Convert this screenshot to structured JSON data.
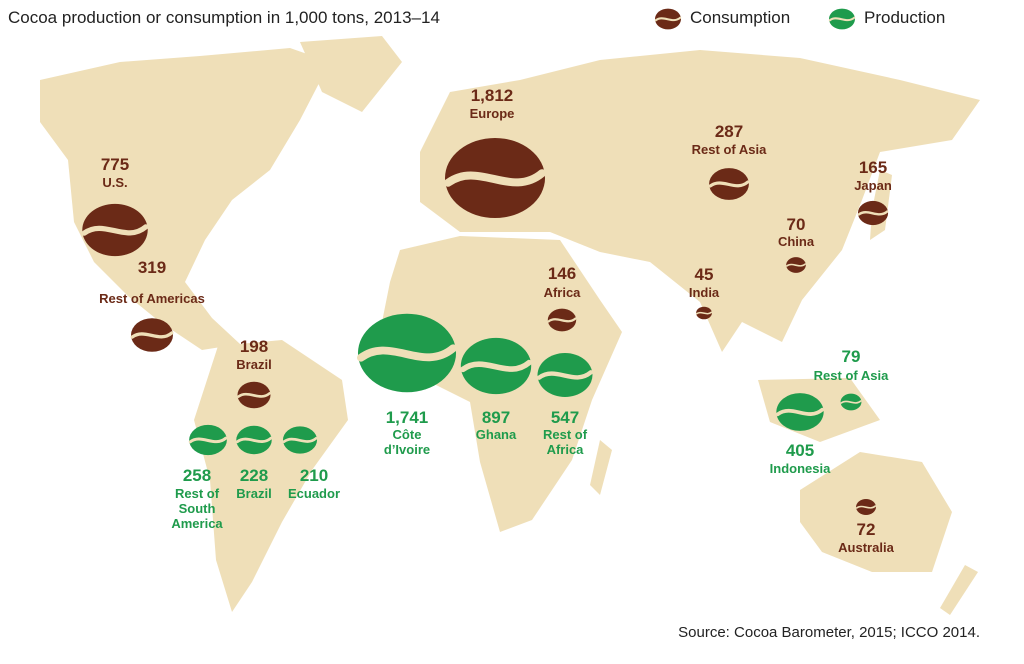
{
  "title": "Cocoa production or consumption in 1,000 tons, 2013–14",
  "source": "Source: Cocoa Barometer, 2015; ICCO 2014.",
  "series": [
    {
      "name": "Consumption",
      "color": "#6b2a17",
      "items": [
        {
          "label": "U.S.",
          "value": 775
        },
        {
          "label": "Rest of Americas",
          "value": 319
        },
        {
          "label": "Brazil",
          "value": 198
        },
        {
          "label": "Europe",
          "value": 1812,
          "value_label": "1,812"
        },
        {
          "label": "Africa",
          "value": 146
        },
        {
          "label": "Rest of Asia",
          "value": 287
        },
        {
          "label": "Japan",
          "value": 165
        },
        {
          "label": "China",
          "value": 70
        },
        {
          "label": "India",
          "value": 45
        },
        {
          "label": "Australia",
          "value": 72
        }
      ]
    },
    {
      "name": "Production",
      "color": "#1f9b4c",
      "items": [
        {
          "label": "Rest of South America",
          "value": 258
        },
        {
          "label": "Brazil",
          "value": 228
        },
        {
          "label": "Ecuador",
          "value": 210
        },
        {
          "label": "Côte d’Ivoire",
          "value": 1741,
          "value_label": "1,741"
        },
        {
          "label": "Ghana",
          "value": 897
        },
        {
          "label": "Rest of Africa",
          "value": 547
        },
        {
          "label": "Indonesia",
          "value": 405
        },
        {
          "label": "Rest of Asia",
          "value": 79
        }
      ]
    }
  ]
}
